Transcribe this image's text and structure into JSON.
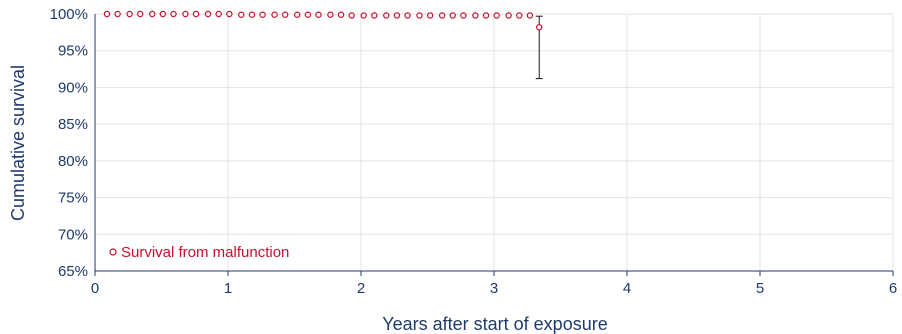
{
  "chart_data": {
    "type": "scatter",
    "xlabel": "Years after start of exposure",
    "ylabel": "Cumulative survival",
    "xlim": [
      0,
      6
    ],
    "ylim": [
      0.65,
      1.0
    ],
    "x_ticks": [
      0,
      1,
      2,
      3,
      4,
      5,
      6
    ],
    "x_tick_labels": [
      "0",
      "1",
      "2",
      "3",
      "4",
      "5",
      "6"
    ],
    "y_ticks": [
      0.65,
      0.7,
      0.75,
      0.8,
      0.85,
      0.9,
      0.95,
      1.0
    ],
    "y_tick_labels": [
      "65%",
      "70%",
      "75%",
      "80%",
      "85%",
      "90%",
      "95%",
      "100%"
    ],
    "grid": true,
    "legend_position": "bottom-left",
    "series": [
      {
        "name": "Survival from malfunction",
        "color": "#c8102e",
        "marker": "open-circle",
        "x": [
          0.09,
          0.17,
          0.26,
          0.34,
          0.43,
          0.51,
          0.59,
          0.68,
          0.76,
          0.85,
          0.93,
          1.01,
          1.1,
          1.18,
          1.26,
          1.35,
          1.43,
          1.52,
          1.6,
          1.68,
          1.77,
          1.85,
          1.93,
          2.02,
          2.1,
          2.19,
          2.27,
          2.35,
          2.44,
          2.52,
          2.61,
          2.69,
          2.77,
          2.86,
          2.94,
          3.02,
          3.11,
          3.19,
          3.27,
          3.34
        ],
        "y": [
          1.0,
          1.0,
          1.0,
          1.0,
          1.0,
          1.0,
          1.0,
          1.0,
          1.0,
          1.0,
          1.0,
          1.0,
          0.999,
          0.999,
          0.999,
          0.999,
          0.999,
          0.999,
          0.999,
          0.999,
          0.999,
          0.999,
          0.998,
          0.998,
          0.998,
          0.998,
          0.998,
          0.998,
          0.998,
          0.998,
          0.998,
          0.998,
          0.998,
          0.998,
          0.998,
          0.998,
          0.998,
          0.998,
          0.998,
          0.982
        ],
        "error_bars": [
          {
            "x": 3.34,
            "low": 0.912,
            "high": 0.997
          }
        ]
      }
    ]
  }
}
